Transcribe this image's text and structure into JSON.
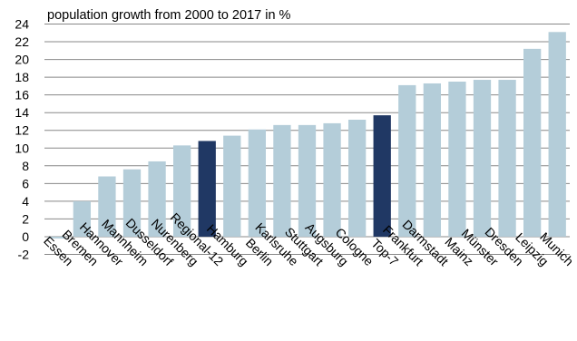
{
  "chart_data": {
    "type": "bar",
    "title": "population growth from 2000 to 2017 in %",
    "xlabel": "",
    "ylabel": "",
    "ylim": [
      -2,
      24
    ],
    "yticks": [
      -2,
      0,
      2,
      4,
      6,
      8,
      10,
      12,
      14,
      16,
      18,
      20,
      22,
      24
    ],
    "grid": true,
    "legend": "none",
    "categories": [
      "Essen",
      "Bremen",
      "Hannover",
      "Mannheim",
      "Dusseldorf",
      "Nurenberg",
      "Regional-12",
      "Hamburg",
      "Berlin",
      "Karlsruhe",
      "Stuttgart",
      "Augsburg",
      "Cologne",
      "Top-7",
      "Frankfurt",
      "Darmstadt",
      "Mainz",
      "Münster",
      "Dresden",
      "Leipzig",
      "Munich"
    ],
    "values": [
      -0.2,
      4.0,
      6.8,
      7.6,
      8.5,
      10.3,
      10.8,
      11.4,
      12.1,
      12.6,
      12.6,
      12.8,
      13.2,
      13.7,
      17.1,
      17.3,
      17.5,
      17.7,
      17.7,
      21.2,
      23.1
    ],
    "highlighted": [
      "Regional-12",
      "Top-7"
    ],
    "colors": {
      "bar": "#b4cdd9",
      "highlight": "#203864",
      "grid": "#888888"
    }
  }
}
